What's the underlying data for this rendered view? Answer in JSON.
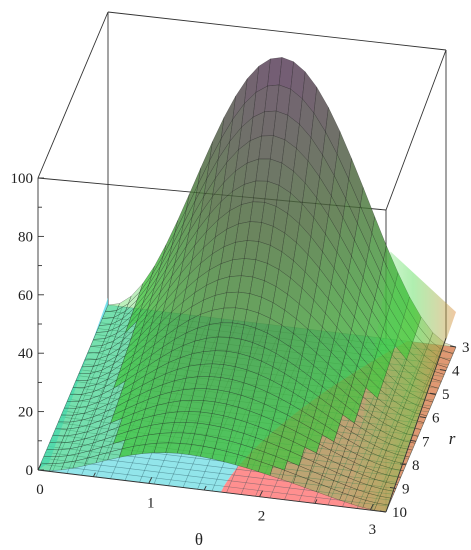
{
  "chart_data": {
    "type": "surface3d",
    "x_axis": {
      "label": "θ",
      "range": [
        0,
        3.14159
      ],
      "ticks": [
        "0",
        "1",
        "2",
        "3"
      ]
    },
    "y_axis": {
      "label": "r",
      "range": [
        3,
        10
      ],
      "ticks": [
        "3",
        "4",
        "5",
        "6",
        "7",
        "8",
        "9",
        "10"
      ]
    },
    "z_axis": {
      "label": "",
      "range": [
        0,
        100
      ],
      "ticks": [
        "0",
        "20",
        "40",
        "60",
        "80",
        "100"
      ]
    },
    "grid": "none",
    "box": true,
    "surfaces": [
      {
        "role": "peaked surface",
        "color_top": "#5a2d5e",
        "color_mid": "#4a6a3a",
        "color_low": "#3fd83f",
        "peak_value": 92,
        "peak_at": {
          "theta": 1.0,
          "r": 3
        }
      },
      {
        "role": "flat plane",
        "color": "#7fe0e6",
        "value": 0
      },
      {
        "role": "flat plane",
        "color": "#ff7f7f",
        "value": 0
      }
    ]
  }
}
